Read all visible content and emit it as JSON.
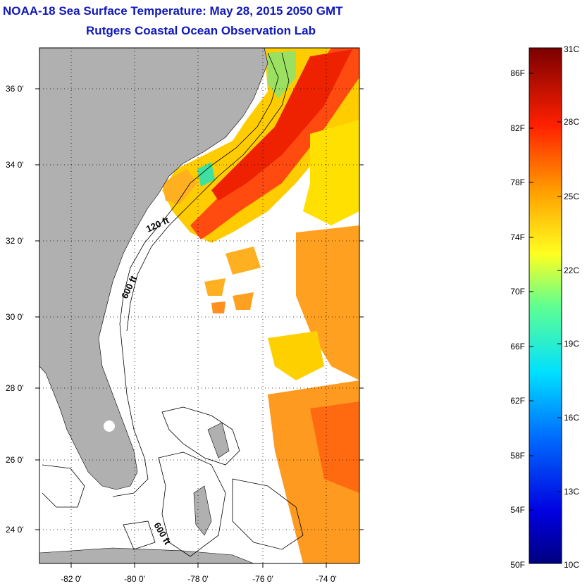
{
  "title": "NOAA-18 Sea Surface Temperature:  May 28, 2015 2050 GMT",
  "subtitle": "Rutgers Coastal Ocean Observation Lab",
  "map": {
    "lat_ticks": [
      "36 0'",
      "34 0'",
      "32 0'",
      "30 0'",
      "28 0'",
      "26 0'",
      "24 0'"
    ],
    "lon_ticks": [
      "-82 0'",
      "-80 0'",
      "-78 0'",
      "-76 0'",
      "-74 0'"
    ],
    "contour_labels": [
      "120 ft",
      "600 ft",
      "600 ft"
    ],
    "colors": {
      "land": "#b0b0b0",
      "ocean_nodata": "#ffffff"
    }
  },
  "colorbar": {
    "fahrenheit": [
      "86F",
      "82F",
      "78F",
      "74F",
      "70F",
      "66F",
      "62F",
      "58F",
      "54F",
      "50F"
    ],
    "celsius": [
      "31C",
      "28C",
      "25C",
      "22C",
      "19C",
      "16C",
      "13C",
      "10C"
    ]
  }
}
